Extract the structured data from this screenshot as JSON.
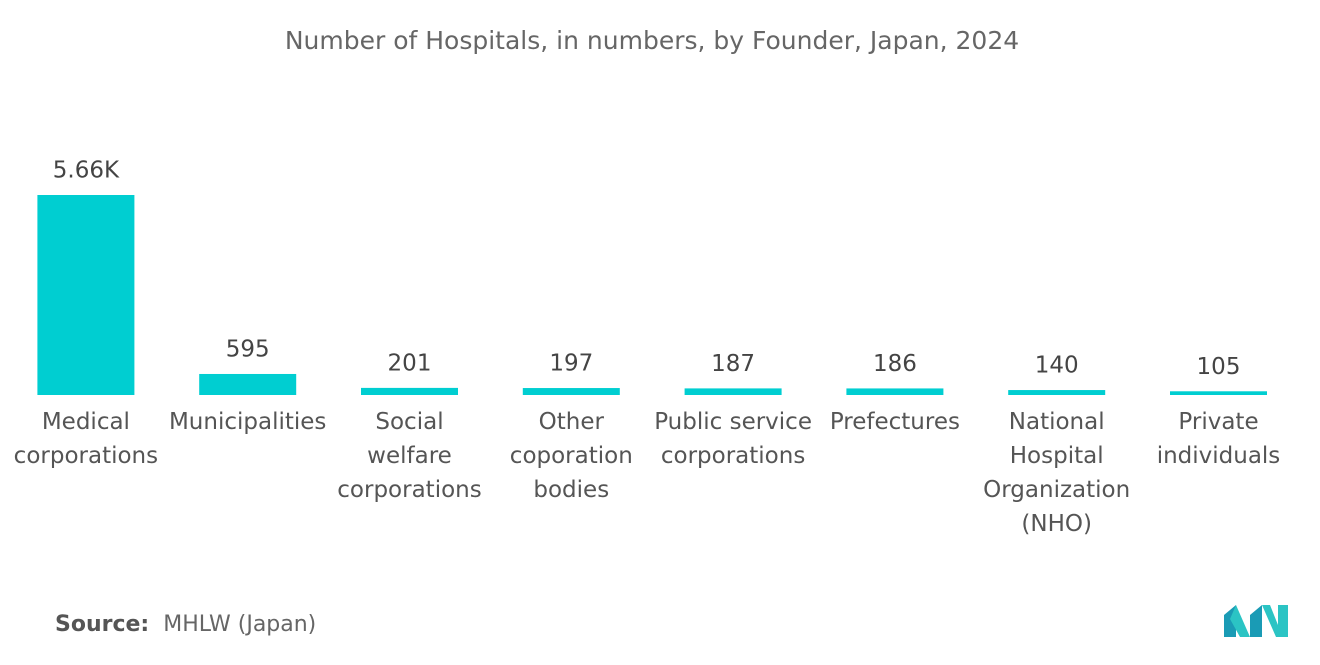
{
  "chart_data": {
    "type": "bar",
    "title": "Number of Hospitals, in numbers, by Founder, Japan, 2024",
    "categories": [
      "Medical corporations",
      "Municipalities",
      "Social welfare corporations",
      "Other coporation bodies",
      "Public service corporations",
      "Prefectures",
      "National Hospital Organization (NHO)",
      "Private individuals"
    ],
    "values": [
      5660,
      595,
      201,
      197,
      187,
      186,
      140,
      105
    ],
    "value_labels": [
      "5.66K",
      "595",
      "201",
      "197",
      "187",
      "186",
      "140",
      "105"
    ],
    "color": "#00ced1"
  },
  "footer": {
    "source_label": "Source:",
    "source": "MHLW (Japan)"
  }
}
